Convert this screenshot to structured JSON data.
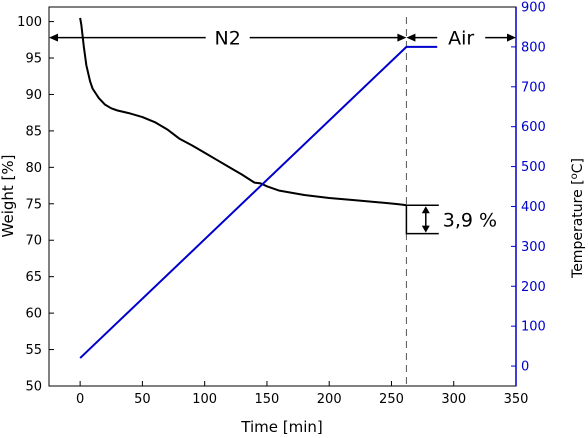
{
  "chart_data": {
    "type": "line",
    "title": "",
    "xlabel": "Time [min]",
    "ylabel": "Weight [%]",
    "y2label_parts": {
      "pre": "Temperature [",
      "sup": "o",
      "post": "C]"
    },
    "xlim": [
      -25,
      350
    ],
    "ylim": [
      50,
      102
    ],
    "y2lim": [
      -50,
      900
    ],
    "x_ticks": [
      0,
      50,
      100,
      150,
      200,
      250,
      300,
      350
    ],
    "y_ticks": [
      50,
      55,
      60,
      65,
      70,
      75,
      80,
      85,
      90,
      95,
      100
    ],
    "y2_ticks": [
      0,
      100,
      200,
      300,
      400,
      500,
      600,
      700,
      800,
      900
    ],
    "grid": false,
    "colors": {
      "weight": "#000000",
      "temperature": "#0000cc"
    },
    "series": [
      {
        "axis": "left",
        "x": [
          0,
          1,
          2,
          3,
          5,
          8,
          10,
          15,
          20,
          25,
          30,
          40,
          50,
          60,
          70,
          80,
          90,
          100,
          110,
          120,
          130,
          140,
          145,
          150,
          160,
          180,
          200,
          220,
          240,
          255,
          260,
          262
        ],
        "y": [
          100.5,
          99.5,
          98,
          96.5,
          94,
          91.8,
          90.8,
          89.5,
          88.6,
          88.1,
          87.8,
          87.4,
          86.9,
          86.2,
          85.2,
          83.9,
          83.0,
          82.0,
          81.0,
          80.0,
          79.0,
          77.9,
          77.8,
          77.4,
          76.8,
          76.2,
          75.8,
          75.5,
          75.2,
          74.95,
          74.85,
          74.8
        ]
      },
      {
        "axis": "right",
        "x": [
          0,
          262,
          288
        ],
        "y": [
          20,
          800,
          800
        ]
      }
    ],
    "annotations": {
      "n2_label": "N2",
      "air_label": "Air",
      "change_label": "3,9 %",
      "switch_time": 262,
      "n2_arrow_y": 97.8,
      "step_from": 74.8,
      "step_to": 70.9,
      "step_end_x": 288
    }
  }
}
